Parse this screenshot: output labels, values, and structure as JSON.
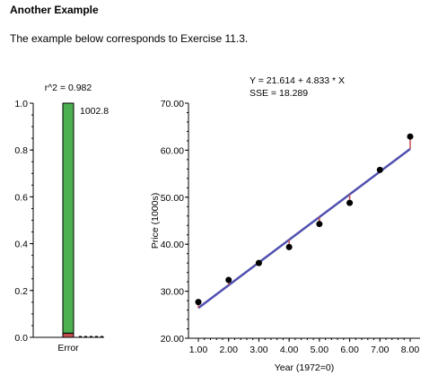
{
  "page": {
    "heading": "Another Example",
    "intro": "The example below corresponds to Exercise 11.3."
  },
  "chart_data": [
    {
      "type": "bar",
      "title": "r^2 = 0.982",
      "categories": [
        "Error"
      ],
      "stacked": true,
      "series": [
        {
          "name": "",
          "values": [
            0.982
          ],
          "color": "#4caf50"
        },
        {
          "name": "",
          "values": [
            0.018
          ],
          "color": "#c0504d"
        }
      ],
      "annotation": "1002.8",
      "ylim": [
        0,
        1.0
      ],
      "yticks": [
        "0.0",
        "0.2",
        "0.4",
        "0.6",
        "0.8",
        "1.0"
      ],
      "xlabel": "",
      "ylabel": "",
      "grid": false
    },
    {
      "type": "scatter",
      "title": "Y = 21.614 + 4.833 * X",
      "subtitle": "SSE = 18.289",
      "x": [
        1,
        2,
        3,
        4,
        5,
        6,
        7,
        8
      ],
      "y": [
        27.7,
        32.4,
        36.0,
        39.4,
        44.3,
        48.8,
        55.8,
        62.9
      ],
      "fit": {
        "intercept": 21.614,
        "slope": 4.833,
        "color": "#5050b0"
      },
      "residual_color": "#c0504d",
      "xlim": [
        1,
        8
      ],
      "ylim": [
        20,
        70
      ],
      "xticks": [
        "1.00",
        "2.00",
        "3.00",
        "4.00",
        "5.00",
        "6.00",
        "7.00",
        "8.00"
      ],
      "yticks": [
        "20.00",
        "30.00",
        "40.00",
        "50.00",
        "60.00",
        "70.00"
      ],
      "xlabel": "Year (1972=0)",
      "ylabel": "Price (1000s)",
      "grid": false
    }
  ]
}
